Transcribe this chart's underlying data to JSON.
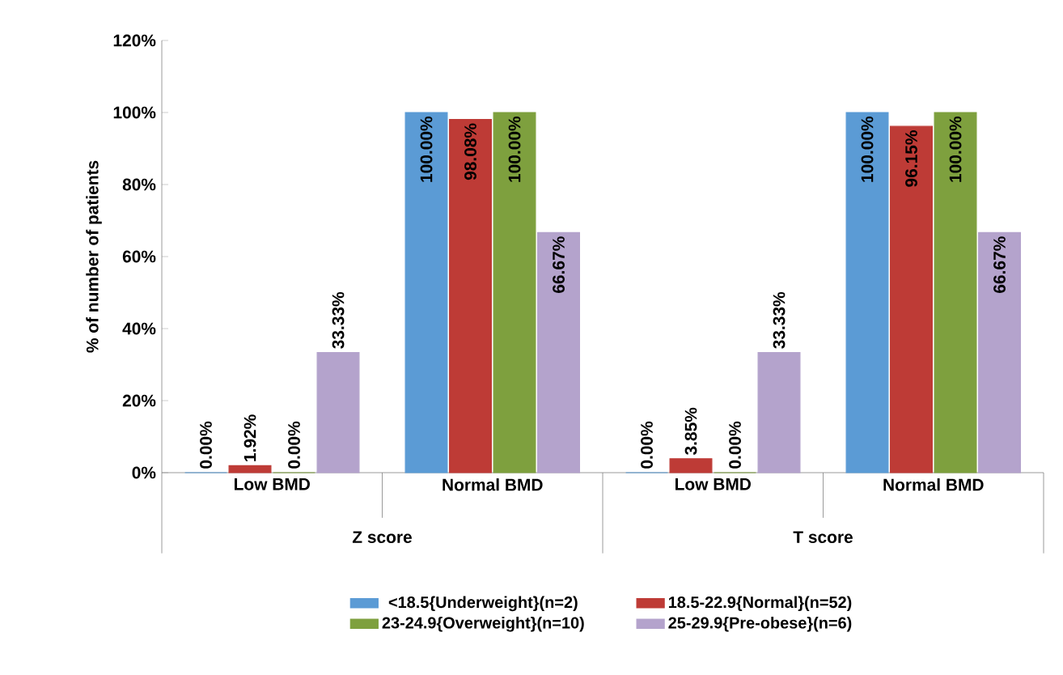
{
  "chart_data": {
    "type": "bar",
    "ylabel": "% of number of patients",
    "categories": [
      "Low BMD",
      "Normal BMD",
      "Low BMD",
      "Normal BMD"
    ],
    "annotations": [
      "Z score",
      "T score"
    ],
    "ylim": [
      0,
      120
    ],
    "yticks": [
      {
        "value": 0,
        "label": "0%"
      },
      {
        "value": 20,
        "label": "20%"
      },
      {
        "value": 40,
        "label": "40%"
      },
      {
        "value": 60,
        "label": "60%"
      },
      {
        "value": 80,
        "label": "80%"
      },
      {
        "value": 100,
        "label": "100%"
      },
      {
        "value": 120,
        "label": "120%"
      }
    ],
    "legend": "bottom",
    "series": [
      {
        "name": "<18.5{Underweight}(n=2)",
        "color": "#5b9bd5",
        "values": [
          0,
          100,
          0,
          100
        ],
        "value_labels": [
          "0.00%",
          "100.00%",
          "0.00%",
          "100.00%"
        ]
      },
      {
        "name": "18.5-22.9{Normal}(n=52)",
        "color": "#be3b36",
        "values": [
          1.92,
          98.08,
          3.85,
          96.15
        ],
        "value_labels": [
          "1.92%",
          "98.08%",
          "3.85%",
          "96.15%"
        ]
      },
      {
        "name": "23-24.9{Overweight}(n=10)",
        "color": "#7ea03e",
        "values": [
          0,
          100,
          0,
          100
        ],
        "value_labels": [
          "0.00%",
          "100.00%",
          "0.00%",
          "100.00%"
        ]
      },
      {
        "name": "25-29.9{Pre-obese}(n=6)",
        "color": "#b4a3cc",
        "values": [
          33.33,
          66.67,
          33.33,
          66.67
        ],
        "value_labels": [
          "33.33%",
          "66.67%",
          "33.33%",
          "66.67%"
        ]
      }
    ]
  }
}
